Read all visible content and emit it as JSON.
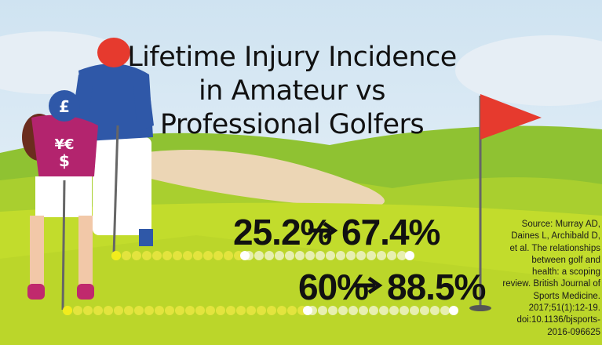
{
  "title": [
    "Lifetime Injury Incidence",
    "in Amateur vs",
    "Professional Golfers"
  ],
  "icons": [
    "£",
    "¥€",
    "$"
  ],
  "stats": [
    {
      "from": "25.2%",
      "to": "67.4%"
    },
    {
      "from": "60%",
      "to": "88.5%"
    }
  ],
  "source": "Source: Murray AD, Daines L, Archibald D, et al. The relationships between golf and health: a scoping review. British Journal of Sports Medicine. 2017;51(1):12-19. doi:10.1136/bjsports-2016-096625"
}
